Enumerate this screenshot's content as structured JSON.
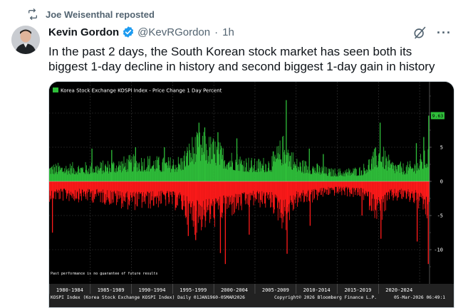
{
  "repost": {
    "text": "Joe Weisenthal reposted",
    "icon": "repost-icon"
  },
  "tweet": {
    "author_name": "Kevin Gordon",
    "handle": "@KevRGordon",
    "separator": "·",
    "time": "1h",
    "text": "In the past 2 days, the South Korean stock market has seen both its biggest 1-day decline in history and second biggest 1-day gain in history",
    "more_label": "···"
  },
  "colors": {
    "positive": "#2fbf3a",
    "negative": "#ff1a1a",
    "background": "#000000",
    "verified": "#1d9bf0"
  },
  "chart_data": {
    "type": "bar",
    "title": "Korea Stock Exchange KOSPI Index - Price Change 1 Day Percent",
    "last_value_label": "9.63",
    "y_ticks": [
      "5",
      "0",
      "-5",
      "-10"
    ],
    "ylim": [
      -14.5,
      14.5
    ],
    "x_labels": [
      "1980-1984",
      "1985-1989",
      "1990-1994",
      "1995-1999",
      "2000-2004",
      "2005-2009",
      "2010-2014",
      "2015-2019",
      "2020-2024"
    ],
    "x_range": [
      1980,
      2026.2
    ],
    "max_gain": 11.9,
    "max_decline": -12.1,
    "disclaimer": "Past performance is no guarantee of future results",
    "footer_left": "KOSPI Index (Korea Stock Exchange KOSPI Index) Daily 01JAN1960-05MAR2026",
    "footer_mid": "Copyright© 2026 Bloomberg Finance L.P.",
    "footer_right": "05-Mar-2026 06:49:1",
    "envelope": [
      [
        1980,
        2.8,
        -3.0
      ],
      [
        1982,
        2.8,
        -3.0
      ],
      [
        1984,
        2.9,
        -3.1
      ],
      [
        1986,
        3.0,
        -3.2
      ],
      [
        1988,
        3.5,
        -3.8
      ],
      [
        1990,
        4.0,
        -4.3
      ],
      [
        1992,
        4.1,
        -4.2
      ],
      [
        1994,
        3.6,
        -3.8
      ],
      [
        1996,
        4.0,
        -4.6
      ],
      [
        1997.5,
        7.2,
        -8.0
      ],
      [
        1998.5,
        7.5,
        -7.5
      ],
      [
        2000,
        6.8,
        -7.0
      ],
      [
        2001.5,
        5.0,
        -5.6
      ],
      [
        2003,
        4.4,
        -5.0
      ],
      [
        2005,
        3.4,
        -3.8
      ],
      [
        2007,
        4.0,
        -4.4
      ],
      [
        2008.6,
        7.4,
        -7.8
      ],
      [
        2010,
        3.6,
        -4.0
      ],
      [
        2012,
        3.0,
        -3.2
      ],
      [
        2014,
        2.0,
        -2.2
      ],
      [
        2016,
        2.0,
        -2.2
      ],
      [
        2018,
        2.4,
        -2.8
      ],
      [
        2020.2,
        6.0,
        -6.5
      ],
      [
        2021.5,
        3.4,
        -3.2
      ],
      [
        2023,
        2.8,
        -3.0
      ],
      [
        2024.5,
        3.2,
        -3.6
      ],
      [
        2026.2,
        5.6,
        -6.8
      ]
    ],
    "spikes": [
      [
        1980.4,
        -7.5
      ],
      [
        1985.2,
        4.8
      ],
      [
        1987.6,
        4.6
      ],
      [
        1990.5,
        5.0
      ],
      [
        1994.0,
        5.0
      ],
      [
        1996.9,
        -8.0
      ],
      [
        1998.2,
        8.6
      ],
      [
        1998.9,
        7.9
      ],
      [
        1997.8,
        -8.6
      ],
      [
        2000.5,
        7.2
      ],
      [
        2001.4,
        -12.1
      ],
      [
        2000.8,
        -10.5
      ],
      [
        2002.8,
        6.3
      ],
      [
        2004.3,
        -7.8
      ],
      [
        2008.8,
        11.9
      ],
      [
        2008.9,
        -10.6
      ],
      [
        2011.6,
        4.8
      ],
      [
        2011.7,
        -6.5
      ],
      [
        2013.3,
        4.0
      ],
      [
        2018.0,
        -5.0
      ],
      [
        2020.2,
        8.6
      ],
      [
        2020.3,
        -8.4
      ],
      [
        2024.6,
        5.6
      ],
      [
        2024.7,
        -8.8
      ],
      [
        2025.5,
        6.5
      ],
      [
        2025.9,
        -5.0
      ],
      [
        2026.1,
        9.63
      ],
      [
        2026.05,
        -12.1
      ]
    ]
  }
}
